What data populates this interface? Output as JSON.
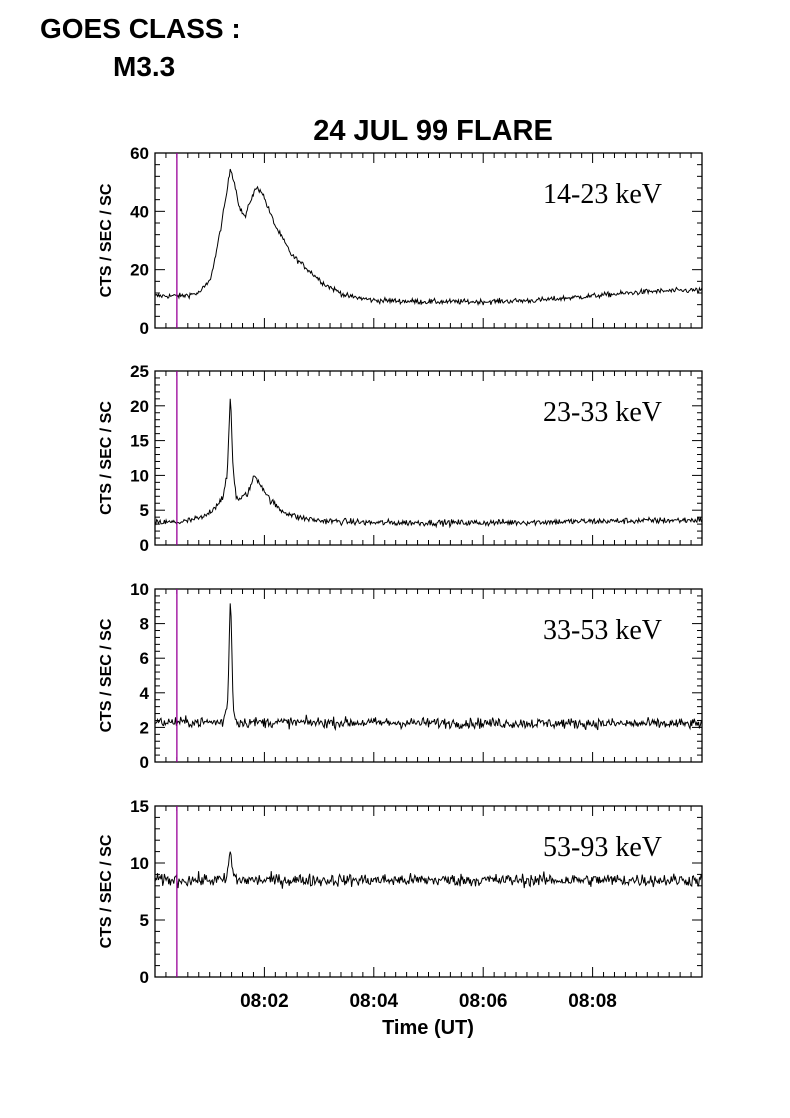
{
  "header": {
    "goes_line1": "GOES CLASS :",
    "goes_line2": "M3.3"
  },
  "chart_data": {
    "type": "line",
    "title": "24 JUL 99 FLARE",
    "xlabel": "Time (UT)",
    "x_unit": "minutes after 08:00 UT",
    "xlim": [
      0.0,
      10.0
    ],
    "x_ticks": [
      2,
      4,
      6,
      8
    ],
    "x_tick_labels": [
      "08:02",
      "08:04",
      "08:06",
      "08:08"
    ],
    "marker_line": {
      "x": 0.4,
      "color": "#990099"
    },
    "line_color": "#000000",
    "panels": [
      {
        "band": "14-23 keV",
        "ylabel": "CTS / SEC / SC",
        "ylim": [
          0,
          60
        ],
        "yticks": [
          0,
          20,
          40,
          60
        ],
        "noise": 0.9,
        "x": [
          0.0,
          0.5,
          0.8,
          1.0,
          1.1,
          1.2,
          1.3,
          1.38,
          1.45,
          1.55,
          1.65,
          1.75,
          1.85,
          1.95,
          2.05,
          2.2,
          2.5,
          2.8,
          3.1,
          3.5,
          4.0,
          5.0,
          6.0,
          7.0,
          8.0,
          9.0,
          10.0
        ],
        "values": [
          11,
          11,
          12,
          16,
          24,
          34,
          45,
          55,
          50,
          41,
          38,
          44,
          48,
          47,
          42,
          35,
          25,
          20,
          15,
          11,
          9.5,
          9,
          9,
          9.5,
          11,
          12.5,
          13
        ]
      },
      {
        "band": "23-33 keV",
        "ylabel": "CTS / SEC / SC",
        "ylim": [
          0,
          25
        ],
        "yticks": [
          0,
          5,
          10,
          15,
          20,
          25
        ],
        "noise": 0.45,
        "x": [
          0.0,
          0.5,
          0.9,
          1.1,
          1.25,
          1.32,
          1.38,
          1.42,
          1.48,
          1.55,
          1.7,
          1.82,
          1.95,
          2.1,
          2.3,
          2.6,
          3.0,
          4.0,
          6.0,
          8.0,
          10.0
        ],
        "values": [
          3.2,
          3.3,
          4,
          5.5,
          7,
          10,
          22,
          12,
          7,
          6.5,
          7.5,
          10,
          8.5,
          6.5,
          5,
          4,
          3.5,
          3.2,
          3.2,
          3.4,
          3.6
        ]
      },
      {
        "band": "33-53 keV",
        "ylabel": "CTS / SEC / SC",
        "ylim": [
          0,
          10
        ],
        "yticks": [
          0,
          2,
          4,
          6,
          8,
          10
        ],
        "noise": 0.3,
        "x": [
          0.0,
          1.25,
          1.33,
          1.38,
          1.43,
          1.5,
          10.0
        ],
        "values": [
          2.3,
          2.3,
          3.5,
          10,
          3.0,
          2.3,
          2.2
        ]
      },
      {
        "band": "53-93 keV",
        "ylabel": "CTS / SEC / SC",
        "ylim": [
          0,
          15
        ],
        "yticks": [
          0,
          5,
          10,
          15
        ],
        "noise": 0.55,
        "x": [
          0.0,
          1.3,
          1.38,
          1.43,
          1.5,
          10.0
        ],
        "values": [
          8.5,
          8.5,
          11,
          9,
          8.5,
          8.5
        ]
      }
    ]
  }
}
